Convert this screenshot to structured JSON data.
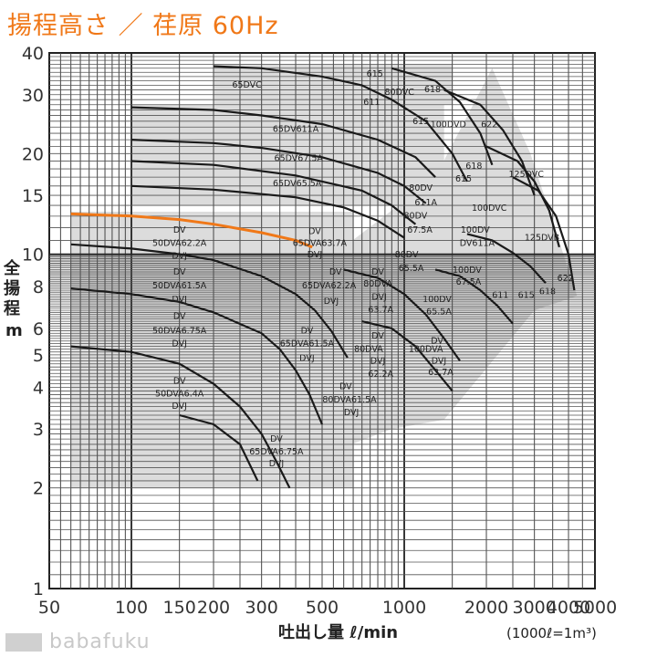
{
  "title": "揚程高さ ／ 荏原 60Hz",
  "watermark": "babafuku",
  "chart_data": {
    "type": "line",
    "xscale": "log",
    "yscale": "log",
    "xlim": [
      50,
      5000
    ],
    "ylim": [
      1,
      40
    ],
    "xticks": [
      50,
      100,
      150,
      200,
      300,
      500,
      1000,
      2000,
      3000,
      4000,
      5000
    ],
    "xtick_labels": [
      "50",
      "100",
      "150",
      "200",
      "300",
      "500",
      "1000",
      "2000",
      "3000",
      "4000",
      "5000"
    ],
    "yticks": [
      1,
      2,
      3,
      4,
      5,
      6,
      8,
      10,
      15,
      20,
      30,
      40
    ],
    "ytick_labels": [
      "1",
      "2",
      "3",
      "4",
      "5",
      "6",
      "8",
      "10",
      "15",
      "20",
      "30",
      "40"
    ],
    "xlabel": "吐出し量 ℓ/min",
    "ylabel": "全揚程 m",
    "unit_note": "(1000ℓ=1m³)",
    "highlight_color": "#f07818",
    "series": [
      {
        "highlight": true,
        "points": [
          [
            60,
            13.2
          ],
          [
            100,
            13.0
          ],
          [
            150,
            12.7
          ],
          [
            200,
            12.3
          ],
          [
            300,
            11.6
          ],
          [
            400,
            11.0
          ],
          [
            460,
            10.5
          ]
        ]
      },
      {
        "points": [
          [
            60,
            10.7
          ],
          [
            100,
            10.4
          ],
          [
            150,
            10.0
          ],
          [
            200,
            9.6
          ],
          [
            300,
            8.6
          ],
          [
            400,
            7.6
          ],
          [
            470,
            6.8
          ],
          [
            540,
            5.9
          ],
          [
            620,
            4.9
          ]
        ]
      },
      {
        "points": [
          [
            60,
            7.9
          ],
          [
            100,
            7.6
          ],
          [
            150,
            7.2
          ],
          [
            200,
            6.7
          ],
          [
            300,
            5.8
          ],
          [
            350,
            5.2
          ],
          [
            400,
            4.5
          ],
          [
            450,
            3.8
          ],
          [
            500,
            3.1
          ]
        ]
      },
      {
        "points": [
          [
            60,
            5.3
          ],
          [
            100,
            5.1
          ],
          [
            150,
            4.7
          ],
          [
            200,
            4.1
          ],
          [
            250,
            3.5
          ],
          [
            300,
            2.9
          ],
          [
            340,
            2.4
          ],
          [
            380,
            2.0
          ]
        ]
      },
      {
        "points": [
          [
            150,
            3.3
          ],
          [
            200,
            3.1
          ],
          [
            250,
            2.7
          ],
          [
            290,
            2.1
          ]
        ]
      },
      {
        "points": [
          [
            100,
            27.5
          ],
          [
            200,
            27.0
          ],
          [
            300,
            26.0
          ],
          [
            500,
            24.5
          ],
          [
            800,
            22.0
          ],
          [
            1100,
            19.5
          ],
          [
            1300,
            17.0
          ]
        ]
      },
      {
        "points": [
          [
            100,
            22.0
          ],
          [
            200,
            21.5
          ],
          [
            300,
            20.8
          ],
          [
            500,
            19.5
          ],
          [
            800,
            17.5
          ],
          [
            1000,
            16.0
          ],
          [
            1200,
            14.2
          ]
        ]
      },
      {
        "points": [
          [
            100,
            19.0
          ],
          [
            200,
            18.5
          ],
          [
            400,
            17.2
          ],
          [
            700,
            15.5
          ],
          [
            900,
            14.0
          ],
          [
            1100,
            12.3
          ]
        ]
      },
      {
        "points": [
          [
            100,
            16.0
          ],
          [
            200,
            15.6
          ],
          [
            400,
            14.8
          ],
          [
            600,
            13.8
          ],
          [
            800,
            12.6
          ],
          [
            1000,
            11.2
          ]
        ]
      },
      {
        "points": [
          [
            200,
            36.5
          ],
          [
            300,
            36.0
          ],
          [
            500,
            34.0
          ],
          [
            700,
            32.0
          ],
          [
            900,
            29.0
          ],
          [
            1200,
            25.0
          ],
          [
            1500,
            20.0
          ],
          [
            1700,
            16.5
          ]
        ]
      },
      {
        "points": [
          [
            900,
            36.0
          ],
          [
            1300,
            33.0
          ],
          [
            1600,
            28.5
          ],
          [
            1900,
            23.0
          ],
          [
            2100,
            18.5
          ]
        ]
      },
      {
        "points": [
          [
            1400,
            31.0
          ],
          [
            1900,
            28.0
          ],
          [
            2300,
            23.5
          ],
          [
            2700,
            19.0
          ],
          [
            3000,
            15.0
          ]
        ]
      },
      {
        "points": [
          [
            2000,
            21.0
          ],
          [
            2600,
            19.0
          ],
          [
            3000,
            16.5
          ],
          [
            3400,
            13.5
          ],
          [
            3700,
            10.5
          ]
        ]
      },
      {
        "points": [
          [
            2500,
            17.0
          ],
          [
            3100,
            15.5
          ],
          [
            3600,
            13.0
          ],
          [
            4000,
            10.0
          ],
          [
            4200,
            7.8
          ]
        ]
      },
      {
        "points": [
          [
            600,
            9.0
          ],
          [
            800,
            8.5
          ],
          [
            1000,
            7.6
          ],
          [
            1200,
            6.6
          ],
          [
            1400,
            5.6
          ],
          [
            1600,
            4.8
          ]
        ]
      },
      {
        "points": [
          [
            700,
            6.3
          ],
          [
            900,
            6.0
          ],
          [
            1100,
            5.3
          ],
          [
            1300,
            4.5
          ],
          [
            1500,
            3.9
          ]
        ]
      },
      {
        "points": [
          [
            1300,
            9.0
          ],
          [
            1600,
            8.6
          ],
          [
            1900,
            7.8
          ],
          [
            2200,
            7.0
          ],
          [
            2500,
            6.2
          ]
        ]
      },
      {
        "points": [
          [
            1700,
            11.5
          ],
          [
            2100,
            11.0
          ],
          [
            2500,
            10.1
          ],
          [
            2900,
            9.2
          ],
          [
            3300,
            8.2
          ]
        ]
      }
    ],
    "labels": [
      {
        "text": "65DVC",
        "x": 265,
        "y": 31.5
      },
      {
        "text": "65DV611A",
        "x": 400,
        "y": 23.2
      },
      {
        "text": "65DV67.5A",
        "x": 410,
        "y": 19.0
      },
      {
        "text": "65DV65.5A",
        "x": 405,
        "y": 16.0
      },
      {
        "text": "615",
        "x": 780,
        "y": 34.0
      },
      {
        "text": "611",
        "x": 760,
        "y": 28.0
      },
      {
        "text": "80DVC",
        "x": 960,
        "y": 30.0
      },
      {
        "text": "618",
        "x": 1270,
        "y": 30.5
      },
      {
        "text": "615",
        "x": 1150,
        "y": 24.5
      },
      {
        "text": "100DVD",
        "x": 1450,
        "y": 24.0
      },
      {
        "text": "622",
        "x": 2050,
        "y": 24.0
      },
      {
        "text": "618",
        "x": 1800,
        "y": 18.0
      },
      {
        "text": "615",
        "x": 1650,
        "y": 16.5
      },
      {
        "text": "125DVC",
        "x": 2800,
        "y": 17.0
      },
      {
        "text": "80DV",
        "x": 1150,
        "y": 15.5
      },
      {
        "text": "611A",
        "x": 1200,
        "y": 14.0
      },
      {
        "text": "100DVC",
        "x": 2050,
        "y": 13.5
      },
      {
        "text": "125DVB",
        "x": 3200,
        "y": 11.0
      },
      {
        "text": "80DV",
        "x": 1100,
        "y": 12.8
      },
      {
        "text": "67.5A",
        "x": 1140,
        "y": 11.6
      },
      {
        "text": "100DV",
        "x": 1820,
        "y": 11.6
      },
      {
        "text": "DV611A",
        "x": 1850,
        "y": 10.6
      },
      {
        "text": "80DV",
        "x": 1020,
        "y": 9.8
      },
      {
        "text": "65.5A",
        "x": 1060,
        "y": 8.9
      },
      {
        "text": "100DV",
        "x": 1700,
        "y": 8.8
      },
      {
        "text": "67.5A",
        "x": 1720,
        "y": 8.1
      },
      {
        "text": "622",
        "x": 3900,
        "y": 8.3
      },
      {
        "text": "611",
        "x": 2250,
        "y": 7.4
      },
      {
        "text": "615",
        "x": 2800,
        "y": 7.4
      },
      {
        "text": "618",
        "x": 3350,
        "y": 7.6
      },
      {
        "text": "DV",
        "x": 150,
        "y": 11.6
      },
      {
        "text": "50DVA62.2A",
        "x": 150,
        "y": 10.6
      },
      {
        "text": "DVJ",
        "x": 150,
        "y": 9.7
      },
      {
        "text": "DV",
        "x": 150,
        "y": 8.7
      },
      {
        "text": "50DVA61.5A",
        "x": 150,
        "y": 7.9
      },
      {
        "text": "DVJ",
        "x": 150,
        "y": 7.2
      },
      {
        "text": "DV",
        "x": 150,
        "y": 6.4
      },
      {
        "text": "50DVA6.75A",
        "x": 150,
        "y": 5.8
      },
      {
        "text": "DVJ",
        "x": 150,
        "y": 5.3
      },
      {
        "text": "DV",
        "x": 150,
        "y": 4.1
      },
      {
        "text": "50DVA6.4A",
        "x": 150,
        "y": 3.75
      },
      {
        "text": "DVJ",
        "x": 150,
        "y": 3.45
      },
      {
        "text": "DV",
        "x": 470,
        "y": 11.5
      },
      {
        "text": "65DVA63.7A",
        "x": 490,
        "y": 10.6
      },
      {
        "text": "DVJ",
        "x": 470,
        "y": 9.8
      },
      {
        "text": "DV",
        "x": 560,
        "y": 8.7
      },
      {
        "text": "65DVA62.2A",
        "x": 530,
        "y": 7.9
      },
      {
        "text": "DVJ",
        "x": 540,
        "y": 7.1
      },
      {
        "text": "DV",
        "x": 800,
        "y": 8.7
      },
      {
        "text": "80DVA",
        "x": 800,
        "y": 8.0
      },
      {
        "text": "DVJ",
        "x": 810,
        "y": 7.3
      },
      {
        "text": "63.7A",
        "x": 820,
        "y": 6.7
      },
      {
        "text": "100DV",
        "x": 1320,
        "y": 7.2
      },
      {
        "text": "65.5A",
        "x": 1340,
        "y": 6.6
      },
      {
        "text": "DV",
        "x": 440,
        "y": 5.8
      },
      {
        "text": "65DVA61.5A",
        "x": 440,
        "y": 5.3
      },
      {
        "text": "DVJ",
        "x": 440,
        "y": 4.8
      },
      {
        "text": "DV",
        "x": 800,
        "y": 5.6
      },
      {
        "text": "80DVA",
        "x": 740,
        "y": 5.1
      },
      {
        "text": "DVJ",
        "x": 800,
        "y": 4.7
      },
      {
        "text": "62.2A",
        "x": 820,
        "y": 4.3
      },
      {
        "text": "DV",
        "x": 1320,
        "y": 5.4
      },
      {
        "text": "100DVA",
        "x": 1200,
        "y": 5.1
      },
      {
        "text": "DVJ",
        "x": 1340,
        "y": 4.7
      },
      {
        "text": "63.7A",
        "x": 1360,
        "y": 4.35
      },
      {
        "text": "DV",
        "x": 610,
        "y": 3.95
      },
      {
        "text": "80DVA61.5A",
        "x": 630,
        "y": 3.6
      },
      {
        "text": "DVJ",
        "x": 640,
        "y": 3.3
      },
      {
        "text": "DV",
        "x": 340,
        "y": 2.75
      },
      {
        "text": "65DVA6.75A",
        "x": 340,
        "y": 2.52
      },
      {
        "text": "DVJ",
        "x": 340,
        "y": 2.32
      }
    ]
  }
}
